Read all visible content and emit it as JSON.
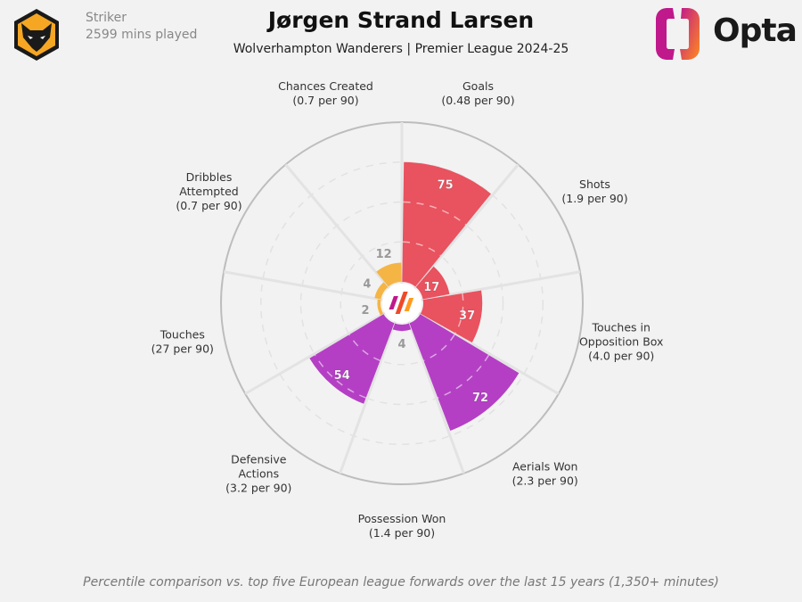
{
  "header": {
    "player_name": "Jørgen Strand Larsen",
    "subtitle": "Wolverhampton Wanderers | Premier League 2024-25",
    "position": "Striker",
    "minutes": "2599 mins played",
    "club_crest_icon": "wolves-crest-icon",
    "brand": "Opta"
  },
  "footnote": "Percentile comparison vs. top five European league forwards over the last 15 years (1,350+ minutes)",
  "colors": {
    "attacking": "#e9525f",
    "defending": "#b43fc4",
    "possession": "#f5b545",
    "background": "#f2f2f2"
  },
  "chart_data": {
    "type": "polar-bar",
    "scale": [
      0,
      100
    ],
    "gridlines": [
      25,
      50,
      75
    ],
    "categories": [
      {
        "name": "Goals",
        "per90": "(0.48 per 90)",
        "percentile": 75,
        "group": "attacking"
      },
      {
        "name": "Shots",
        "per90": "(1.9 per 90)",
        "percentile": 17,
        "group": "attacking"
      },
      {
        "name": "Touches in Opposition Box",
        "lines": [
          "Touches in",
          "Opposition Box"
        ],
        "per90": "(4.0 per 90)",
        "percentile": 37,
        "group": "attacking"
      },
      {
        "name": "Aerials Won",
        "per90": "(2.3 per 90)",
        "percentile": 72,
        "group": "defending"
      },
      {
        "name": "Possession Won",
        "per90": "(1.4 per 90)",
        "percentile": 4,
        "group": "defending"
      },
      {
        "name": "Defensive Actions",
        "lines": [
          "Defensive",
          "Actions"
        ],
        "per90": "(3.2 per 90)",
        "percentile": 54,
        "group": "defending"
      },
      {
        "name": "Touches",
        "per90": "(27 per 90)",
        "percentile": 2,
        "group": "possession"
      },
      {
        "name": "Dribbles Attempted",
        "lines": [
          "Dribbles",
          "Attempted"
        ],
        "per90": "(0.7 per 90)",
        "percentile": 4,
        "group": "possession"
      },
      {
        "name": "Chances Created",
        "per90": "(0.7 per 90)",
        "percentile": 12,
        "group": "possession"
      }
    ]
  }
}
